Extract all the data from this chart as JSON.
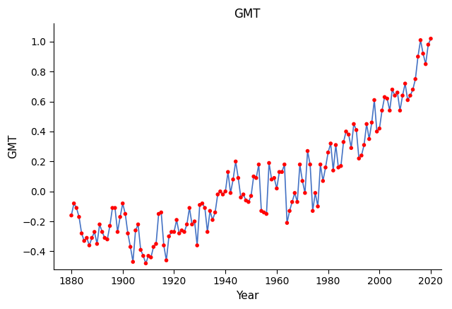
{
  "title": "GMT",
  "xlabel": "Year",
  "ylabel": "GMT",
  "line_color": "#4472C4",
  "marker_color": "red",
  "marker_size": 4,
  "linewidth": 1.2,
  "years": [
    1880,
    1881,
    1882,
    1883,
    1884,
    1885,
    1886,
    1887,
    1888,
    1889,
    1890,
    1891,
    1892,
    1893,
    1894,
    1895,
    1896,
    1897,
    1898,
    1899,
    1900,
    1901,
    1902,
    1903,
    1904,
    1905,
    1906,
    1907,
    1908,
    1909,
    1910,
    1911,
    1912,
    1913,
    1914,
    1915,
    1916,
    1917,
    1918,
    1919,
    1920,
    1921,
    1922,
    1923,
    1924,
    1925,
    1926,
    1927,
    1928,
    1929,
    1930,
    1931,
    1932,
    1933,
    1934,
    1935,
    1936,
    1937,
    1938,
    1939,
    1940,
    1941,
    1942,
    1943,
    1944,
    1945,
    1946,
    1947,
    1948,
    1949,
    1950,
    1951,
    1952,
    1953,
    1954,
    1955,
    1956,
    1957,
    1958,
    1959,
    1960,
    1961,
    1962,
    1963,
    1964,
    1965,
    1966,
    1967,
    1968,
    1969,
    1970,
    1971,
    1972,
    1973,
    1974,
    1975,
    1976,
    1977,
    1978,
    1979,
    1980,
    1981,
    1982,
    1983,
    1984,
    1985,
    1986,
    1987,
    1988,
    1989,
    1990,
    1991,
    1992,
    1993,
    1994,
    1995,
    1996,
    1997,
    1998,
    1999,
    2000,
    2001,
    2002,
    2003,
    2004,
    2005,
    2006,
    2007,
    2008,
    2009,
    2010,
    2011,
    2012,
    2013,
    2014,
    2015,
    2016,
    2017,
    2018,
    2019,
    2020
  ],
  "gmt": [
    -0.16,
    -0.08,
    -0.11,
    -0.17,
    -0.28,
    -0.33,
    -0.31,
    -0.36,
    -0.31,
    -0.27,
    -0.35,
    -0.22,
    -0.27,
    -0.31,
    -0.32,
    -0.23,
    -0.11,
    -0.11,
    -0.27,
    -0.17,
    -0.08,
    -0.15,
    -0.28,
    -0.37,
    -0.47,
    -0.26,
    -0.22,
    -0.39,
    -0.43,
    -0.48,
    -0.43,
    -0.44,
    -0.37,
    -0.35,
    -0.15,
    -0.14,
    -0.36,
    -0.46,
    -0.3,
    -0.27,
    -0.27,
    -0.19,
    -0.28,
    -0.26,
    -0.27,
    -0.22,
    -0.11,
    -0.22,
    -0.2,
    -0.36,
    -0.09,
    -0.08,
    -0.11,
    -0.27,
    -0.13,
    -0.19,
    -0.14,
    -0.02,
    -0.0,
    -0.02,
    0.0,
    0.13,
    -0.01,
    0.08,
    0.2,
    0.09,
    -0.04,
    -0.02,
    -0.06,
    -0.07,
    -0.03,
    0.1,
    0.09,
    0.18,
    -0.13,
    -0.14,
    -0.15,
    0.19,
    0.08,
    0.09,
    0.02,
    0.13,
    0.13,
    0.18,
    -0.21,
    -0.13,
    -0.07,
    -0.01,
    -0.07,
    0.18,
    0.07,
    -0.01,
    0.27,
    0.18,
    -0.13,
    -0.01,
    -0.1,
    0.18,
    0.07,
    0.16,
    0.26,
    0.32,
    0.14,
    0.31,
    0.16,
    0.17,
    0.33,
    0.4,
    0.38,
    0.29,
    0.45,
    0.41,
    0.22,
    0.24,
    0.31,
    0.45,
    0.35,
    0.46,
    0.61,
    0.4,
    0.42,
    0.54,
    0.63,
    0.62,
    0.54,
    0.68,
    0.64,
    0.66,
    0.54,
    0.64,
    0.72,
    0.61,
    0.64,
    0.68,
    0.75,
    0.9,
    1.01,
    0.92,
    0.85,
    0.98,
    1.02
  ],
  "xlim": [
    1873,
    2024
  ],
  "ylim": [
    -0.52,
    1.12
  ],
  "xticks": [
    1880,
    1900,
    1920,
    1940,
    1960,
    1980,
    2000,
    2020
  ],
  "yticks": [
    -0.4,
    -0.2,
    0.0,
    0.2,
    0.4,
    0.6,
    0.8,
    1.0
  ],
  "background_color": "white",
  "title_fontsize": 12,
  "label_fontsize": 11,
  "tick_fontsize": 10
}
